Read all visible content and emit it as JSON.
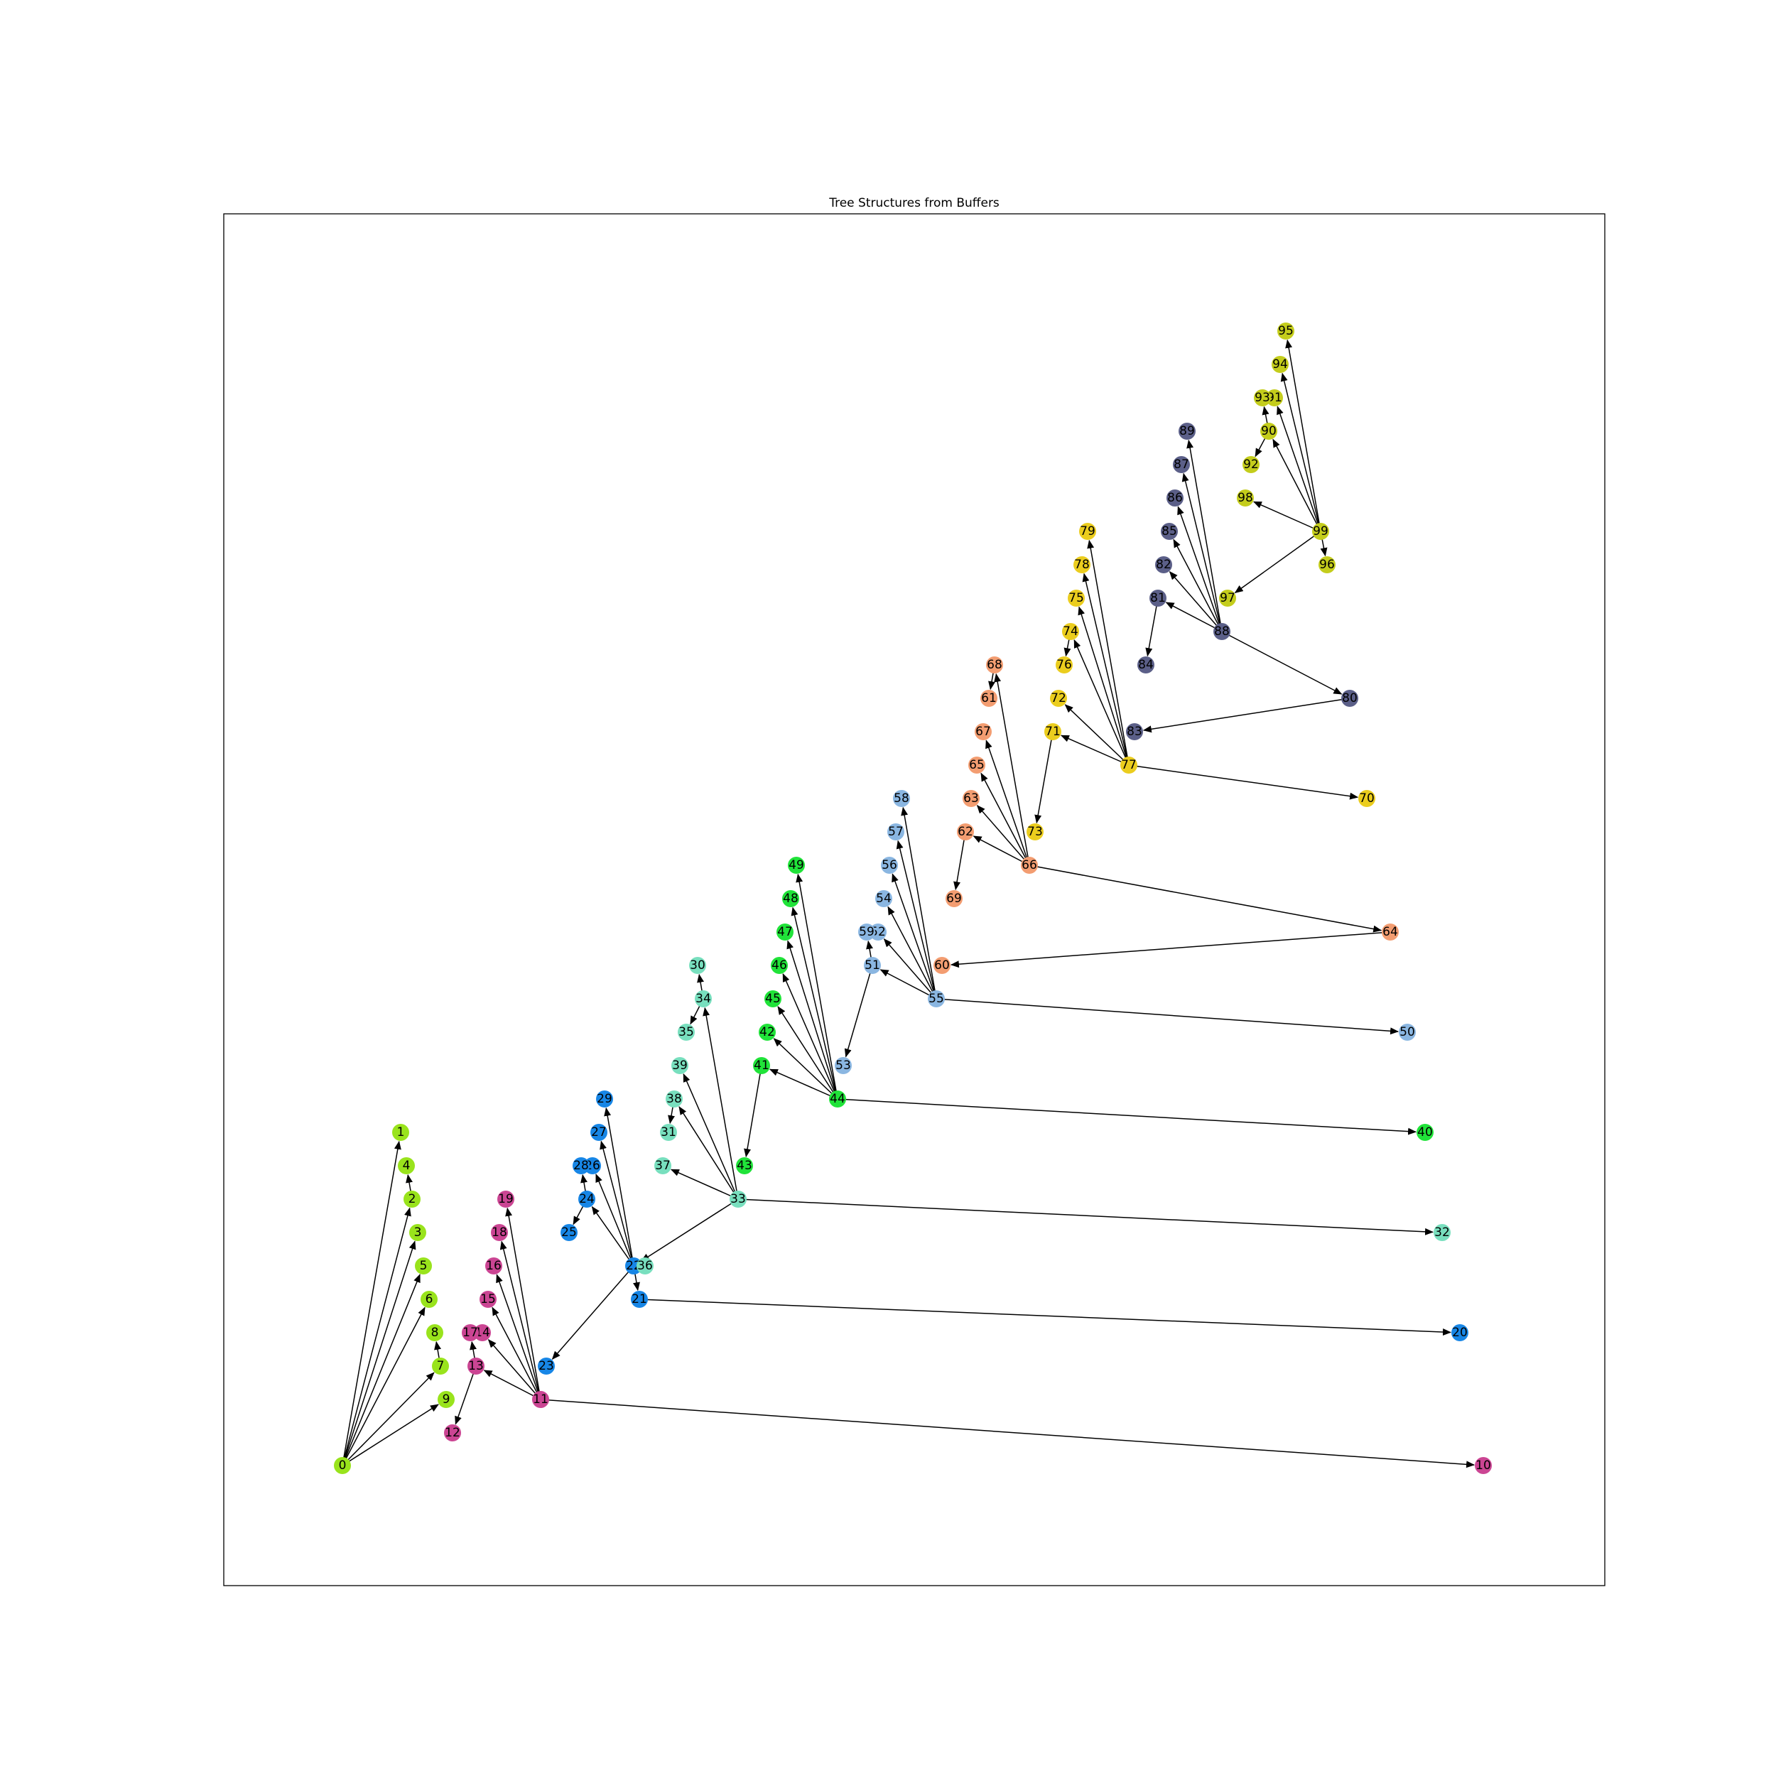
{
  "title": "Tree Structures from Buffers",
  "colors": {
    "lime": "#99e31c",
    "magenta": "#cb4593",
    "blue": "#1786e6",
    "mint": "#78dfbe",
    "green": "#20e339",
    "skyblue": "#8ab6e1",
    "salmon": "#f39d71",
    "gold": "#ebcd1e",
    "slate": "#5b5f88",
    "olive": "#c4cd1c"
  },
  "nodes": [
    {
      "id": "0",
      "color": "lime"
    },
    {
      "id": "1",
      "color": "lime"
    },
    {
      "id": "2",
      "color": "lime"
    },
    {
      "id": "3",
      "color": "lime"
    },
    {
      "id": "4",
      "color": "lime"
    },
    {
      "id": "5",
      "color": "lime"
    },
    {
      "id": "6",
      "color": "lime"
    },
    {
      "id": "7",
      "color": "lime"
    },
    {
      "id": "8",
      "color": "lime"
    },
    {
      "id": "9",
      "color": "lime"
    },
    {
      "id": "10",
      "color": "magenta"
    },
    {
      "id": "11",
      "color": "magenta"
    },
    {
      "id": "12",
      "color": "magenta"
    },
    {
      "id": "13",
      "color": "magenta"
    },
    {
      "id": "14",
      "color": "magenta"
    },
    {
      "id": "15",
      "color": "magenta"
    },
    {
      "id": "16",
      "color": "magenta"
    },
    {
      "id": "17",
      "color": "magenta"
    },
    {
      "id": "18",
      "color": "magenta"
    },
    {
      "id": "19",
      "color": "magenta"
    },
    {
      "id": "20",
      "color": "blue"
    },
    {
      "id": "21",
      "color": "blue"
    },
    {
      "id": "22",
      "color": "blue"
    },
    {
      "id": "23",
      "color": "blue"
    },
    {
      "id": "24",
      "color": "blue"
    },
    {
      "id": "25",
      "color": "blue"
    },
    {
      "id": "26",
      "color": "blue"
    },
    {
      "id": "27",
      "color": "blue"
    },
    {
      "id": "28",
      "color": "blue"
    },
    {
      "id": "29",
      "color": "blue"
    },
    {
      "id": "30",
      "color": "mint"
    },
    {
      "id": "31",
      "color": "mint"
    },
    {
      "id": "32",
      "color": "mint"
    },
    {
      "id": "33",
      "color": "mint"
    },
    {
      "id": "34",
      "color": "mint"
    },
    {
      "id": "35",
      "color": "mint"
    },
    {
      "id": "36",
      "color": "mint"
    },
    {
      "id": "37",
      "color": "mint"
    },
    {
      "id": "38",
      "color": "mint"
    },
    {
      "id": "39",
      "color": "mint"
    },
    {
      "id": "40",
      "color": "green"
    },
    {
      "id": "41",
      "color": "green"
    },
    {
      "id": "42",
      "color": "green"
    },
    {
      "id": "43",
      "color": "green"
    },
    {
      "id": "44",
      "color": "green"
    },
    {
      "id": "45",
      "color": "green"
    },
    {
      "id": "46",
      "color": "green"
    },
    {
      "id": "47",
      "color": "green"
    },
    {
      "id": "48",
      "color": "green"
    },
    {
      "id": "49",
      "color": "green"
    },
    {
      "id": "50",
      "color": "skyblue"
    },
    {
      "id": "51",
      "color": "skyblue"
    },
    {
      "id": "52",
      "color": "skyblue"
    },
    {
      "id": "53",
      "color": "skyblue"
    },
    {
      "id": "54",
      "color": "skyblue"
    },
    {
      "id": "55",
      "color": "skyblue"
    },
    {
      "id": "56",
      "color": "skyblue"
    },
    {
      "id": "57",
      "color": "skyblue"
    },
    {
      "id": "58",
      "color": "skyblue"
    },
    {
      "id": "59",
      "color": "skyblue"
    },
    {
      "id": "60",
      "color": "salmon"
    },
    {
      "id": "61",
      "color": "salmon"
    },
    {
      "id": "62",
      "color": "salmon"
    },
    {
      "id": "63",
      "color": "salmon"
    },
    {
      "id": "64",
      "color": "salmon"
    },
    {
      "id": "65",
      "color": "salmon"
    },
    {
      "id": "66",
      "color": "salmon"
    },
    {
      "id": "67",
      "color": "salmon"
    },
    {
      "id": "68",
      "color": "salmon"
    },
    {
      "id": "69",
      "color": "salmon"
    },
    {
      "id": "70",
      "color": "gold"
    },
    {
      "id": "71",
      "color": "gold"
    },
    {
      "id": "72",
      "color": "gold"
    },
    {
      "id": "73",
      "color": "gold"
    },
    {
      "id": "74",
      "color": "gold"
    },
    {
      "id": "75",
      "color": "gold"
    },
    {
      "id": "76",
      "color": "gold"
    },
    {
      "id": "77",
      "color": "gold"
    },
    {
      "id": "78",
      "color": "gold"
    },
    {
      "id": "79",
      "color": "gold"
    },
    {
      "id": "80",
      "color": "slate"
    },
    {
      "id": "81",
      "color": "slate"
    },
    {
      "id": "82",
      "color": "slate"
    },
    {
      "id": "83",
      "color": "slate"
    },
    {
      "id": "84",
      "color": "slate"
    },
    {
      "id": "85",
      "color": "slate"
    },
    {
      "id": "86",
      "color": "slate"
    },
    {
      "id": "87",
      "color": "slate"
    },
    {
      "id": "88",
      "color": "slate"
    },
    {
      "id": "89",
      "color": "slate"
    },
    {
      "id": "90",
      "color": "olive"
    },
    {
      "id": "91",
      "color": "olive"
    },
    {
      "id": "92",
      "color": "olive"
    },
    {
      "id": "93",
      "color": "olive"
    },
    {
      "id": "94",
      "color": "olive"
    },
    {
      "id": "95",
      "color": "olive"
    },
    {
      "id": "96",
      "color": "olive"
    },
    {
      "id": "97",
      "color": "olive"
    },
    {
      "id": "98",
      "color": "olive"
    },
    {
      "id": "99",
      "color": "olive"
    }
  ],
  "edges": [
    [
      "0",
      "1"
    ],
    [
      "0",
      "2"
    ],
    [
      "0",
      "3"
    ],
    [
      "0",
      "5"
    ],
    [
      "0",
      "6"
    ],
    [
      "0",
      "7"
    ],
    [
      "0",
      "9"
    ],
    [
      "2",
      "4"
    ],
    [
      "7",
      "8"
    ],
    [
      "11",
      "10"
    ],
    [
      "11",
      "13"
    ],
    [
      "11",
      "14"
    ],
    [
      "11",
      "15"
    ],
    [
      "11",
      "16"
    ],
    [
      "11",
      "18"
    ],
    [
      "11",
      "19"
    ],
    [
      "13",
      "12"
    ],
    [
      "13",
      "17"
    ],
    [
      "22",
      "21"
    ],
    [
      "22",
      "23"
    ],
    [
      "22",
      "24"
    ],
    [
      "22",
      "26"
    ],
    [
      "22",
      "27"
    ],
    [
      "22",
      "29"
    ],
    [
      "24",
      "25"
    ],
    [
      "24",
      "28"
    ],
    [
      "21",
      "20"
    ],
    [
      "33",
      "32"
    ],
    [
      "33",
      "22"
    ],
    [
      "33",
      "37"
    ],
    [
      "33",
      "38"
    ],
    [
      "33",
      "39"
    ],
    [
      "33",
      "34"
    ],
    [
      "34",
      "30"
    ],
    [
      "34",
      "35"
    ],
    [
      "38",
      "31"
    ],
    [
      "44",
      "40"
    ],
    [
      "44",
      "41"
    ],
    [
      "44",
      "42"
    ],
    [
      "44",
      "45"
    ],
    [
      "44",
      "46"
    ],
    [
      "44",
      "47"
    ],
    [
      "44",
      "48"
    ],
    [
      "44",
      "49"
    ],
    [
      "41",
      "43"
    ],
    [
      "55",
      "50"
    ],
    [
      "55",
      "51"
    ],
    [
      "55",
      "52"
    ],
    [
      "55",
      "54"
    ],
    [
      "55",
      "56"
    ],
    [
      "55",
      "57"
    ],
    [
      "55",
      "58"
    ],
    [
      "51",
      "53"
    ],
    [
      "51",
      "59"
    ],
    [
      "66",
      "64"
    ],
    [
      "66",
      "62"
    ],
    [
      "66",
      "63"
    ],
    [
      "66",
      "65"
    ],
    [
      "66",
      "67"
    ],
    [
      "66",
      "68"
    ],
    [
      "62",
      "69"
    ],
    [
      "68",
      "61"
    ],
    [
      "64",
      "60"
    ],
    [
      "77",
      "70"
    ],
    [
      "77",
      "71"
    ],
    [
      "77",
      "72"
    ],
    [
      "77",
      "74"
    ],
    [
      "77",
      "75"
    ],
    [
      "77",
      "78"
    ],
    [
      "77",
      "79"
    ],
    [
      "71",
      "73"
    ],
    [
      "74",
      "76"
    ],
    [
      "88",
      "80"
    ],
    [
      "88",
      "81"
    ],
    [
      "88",
      "82"
    ],
    [
      "88",
      "85"
    ],
    [
      "88",
      "86"
    ],
    [
      "88",
      "87"
    ],
    [
      "88",
      "89"
    ],
    [
      "81",
      "84"
    ],
    [
      "80",
      "83"
    ],
    [
      "99",
      "97"
    ],
    [
      "99",
      "96"
    ],
    [
      "99",
      "98"
    ],
    [
      "99",
      "90"
    ],
    [
      "99",
      "91"
    ],
    [
      "99",
      "94"
    ],
    [
      "99",
      "95"
    ],
    [
      "90",
      "92"
    ],
    [
      "90",
      "93"
    ]
  ]
}
